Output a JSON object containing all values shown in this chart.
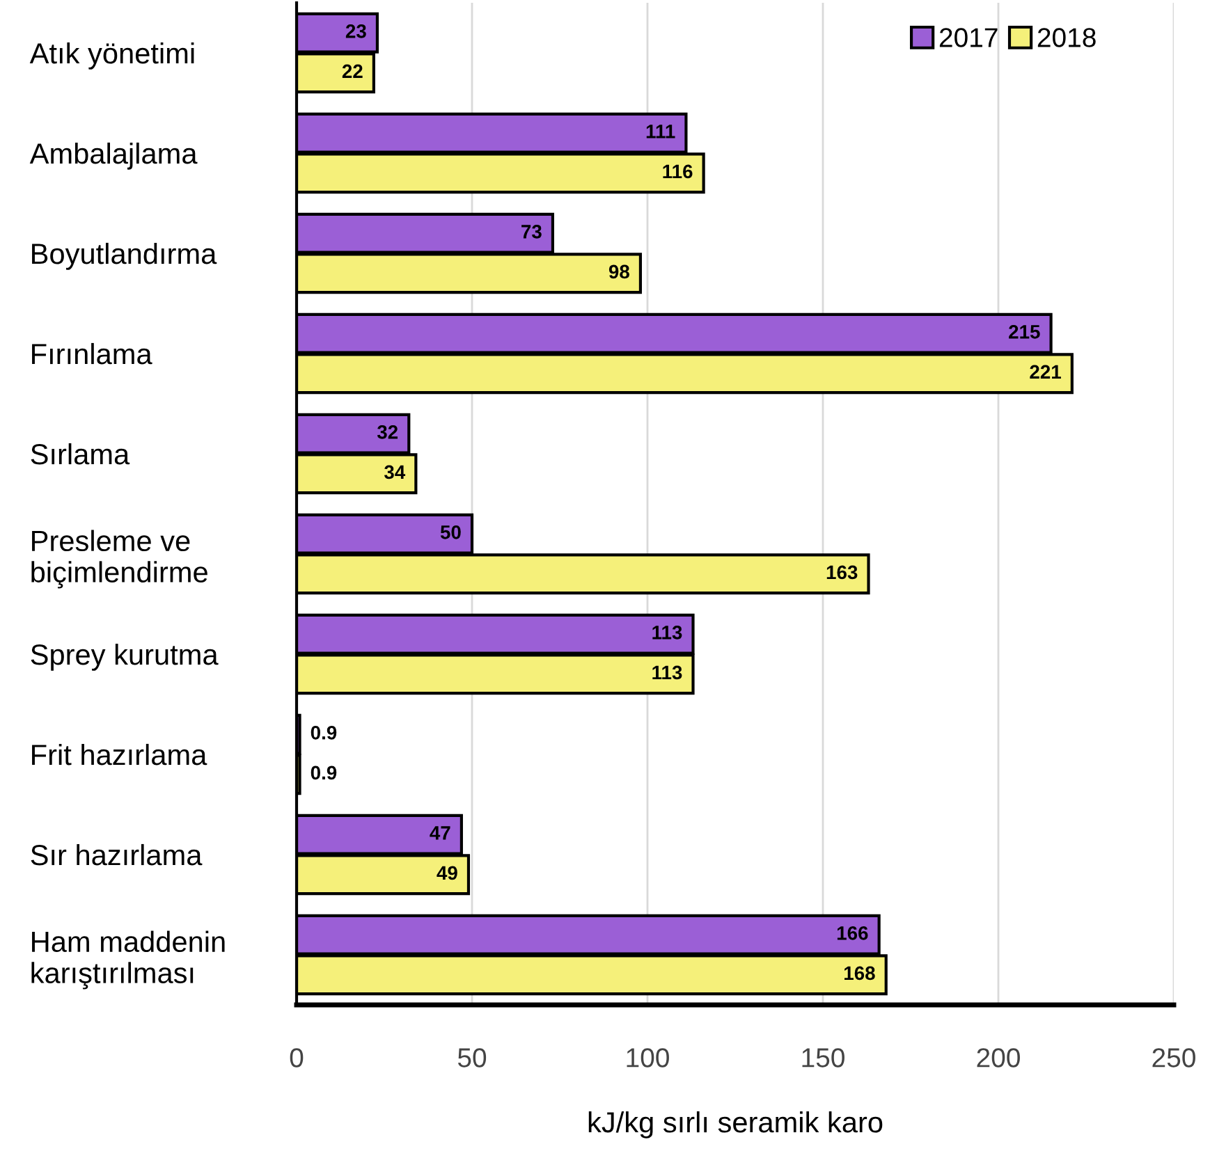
{
  "chart_data": {
    "type": "bar",
    "orientation": "horizontal",
    "xlabel": "kJ/kg sırlı seramik karo",
    "categories": [
      "Atık yönetimi",
      "Ambalajlama",
      "Boyutlandırma",
      "Fırınlama",
      "Sırlama",
      "Presleme ve\nbiçimlendirme",
      "Sprey kurutma",
      "Frit hazırlama",
      "Sır hazırlama",
      "Ham maddenin\nkarıştırılması"
    ],
    "series": [
      {
        "name": "2017",
        "color": "#9b5fd6",
        "values": [
          23,
          111,
          73,
          215,
          32,
          50,
          113,
          0.9,
          47,
          166
        ]
      },
      {
        "name": "2018",
        "color": "#f5f07a",
        "values": [
          22,
          116,
          98,
          221,
          34,
          163,
          113,
          0.9,
          49,
          168
        ]
      }
    ],
    "xlim": [
      0,
      250
    ],
    "xticks": [
      0,
      50,
      100,
      150,
      200,
      250
    ],
    "grid": "x",
    "legend": "top right",
    "data_labels": true
  }
}
